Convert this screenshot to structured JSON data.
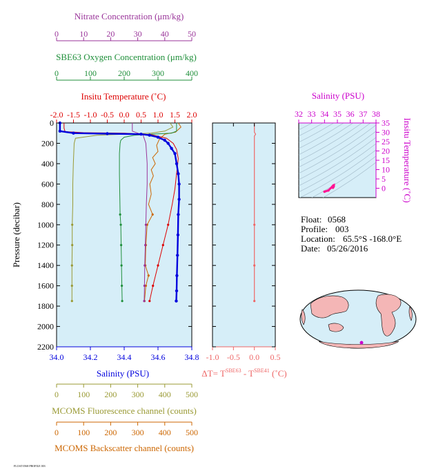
{
  "colors": {
    "nitrate": "#993399",
    "oxygen": "#1f8f3a",
    "temperature": "#dd0000",
    "salinity": "#0000dd",
    "fluorescence": "#999933",
    "backscatter": "#cc6600",
    "delta_t": "#ee6666",
    "ts_axis": "#cc00cc",
    "plot_bg": "#d6eef8",
    "map_land": "#f4b6b6",
    "map_ocean": "#d6eef8"
  },
  "info": {
    "float_label": "Float:",
    "float_value": "0568",
    "profile_label": "Profile:",
    "profile_value": "003",
    "location_label": "Location:",
    "location_value": "65.5°S  -168.0°E",
    "date_label": "Date:",
    "date_value": "05/26/2016"
  },
  "footer_note": "FLOAT 0568 PROFILE 003",
  "chart_data": [
    {
      "type": "line",
      "name": "main-profile",
      "ylabel": "Pressure (decibar)",
      "ylim": [
        2200,
        0
      ],
      "yticks": [
        0,
        200,
        400,
        600,
        800,
        1000,
        1200,
        1400,
        1600,
        1800,
        2000,
        2200
      ],
      "axes": {
        "nitrate": {
          "label": "Nitrate Concentration (μm/kg)",
          "lim": [
            0,
            50
          ],
          "ticks": [
            0,
            10,
            20,
            30,
            40,
            50
          ]
        },
        "oxygen": {
          "label": "SBE63 Oxygen Concentration (μm/kg)",
          "lim": [
            0,
            400
          ],
          "ticks": [
            0,
            100,
            200,
            300,
            400
          ]
        },
        "temperature": {
          "label": "Insitu Temperature (˚C)",
          "lim": [
            -2.0,
            2.0
          ],
          "ticks": [
            "-2.0",
            "-1.5",
            "-1.0",
            "-0.5",
            "0.0",
            "0.5",
            "1.0",
            "1.5",
            "2.0"
          ]
        },
        "salinity": {
          "label": "Salinity (PSU)",
          "lim": [
            34.0,
            34.8
          ],
          "ticks": [
            "34.0",
            "34.2",
            "34.4",
            "34.6",
            "34.8"
          ]
        },
        "fluorescence": {
          "label": "MCOMS Fluorescence channel (counts)",
          "lim": [
            0,
            500
          ],
          "ticks": [
            0,
            100,
            200,
            300,
            400,
            500
          ]
        },
        "backscatter": {
          "label": "MCOMS Backscatter channel (counts)",
          "lim": [
            0,
            500
          ],
          "ticks": [
            0,
            100,
            200,
            300,
            400,
            500
          ]
        }
      },
      "series": [
        {
          "key": "temperature",
          "axis": "temperature",
          "points": [
            [
              -1.78,
              0
            ],
            [
              -1.78,
              50
            ],
            [
              -1.75,
              85
            ],
            [
              -1.2,
              95
            ],
            [
              0.0,
              100
            ],
            [
              0.8,
              115
            ],
            [
              1.25,
              150
            ],
            [
              1.45,
              200
            ],
            [
              1.55,
              260
            ],
            [
              1.6,
              350
            ],
            [
              1.55,
              500
            ],
            [
              1.5,
              650
            ],
            [
              1.42,
              800
            ],
            [
              1.3,
              1000
            ],
            [
              1.15,
              1200
            ],
            [
              1.0,
              1400
            ],
            [
              0.85,
              1600
            ],
            [
              0.75,
              1750
            ]
          ]
        },
        {
          "key": "salinity",
          "axis": "salinity",
          "points": [
            [
              34.02,
              0
            ],
            [
              34.02,
              80
            ],
            [
              34.1,
              100
            ],
            [
              34.3,
              105
            ],
            [
              34.5,
              110
            ],
            [
              34.55,
              120
            ],
            [
              34.6,
              140
            ],
            [
              34.64,
              170
            ],
            [
              34.66,
              200
            ],
            [
              34.68,
              250
            ],
            [
              34.7,
              300
            ],
            [
              34.71,
              400
            ],
            [
              34.72,
              500
            ],
            [
              34.725,
              600
            ],
            [
              34.725,
              750
            ],
            [
              34.72,
              900
            ],
            [
              34.718,
              1100
            ],
            [
              34.715,
              1300
            ],
            [
              34.712,
              1500
            ],
            [
              34.71,
              1650
            ],
            [
              34.708,
              1750
            ]
          ]
        },
        {
          "key": "oxygen",
          "axis": "oxygen",
          "points": [
            [
              355,
              0
            ],
            [
              355,
              80
            ],
            [
              340,
              100
            ],
            [
              280,
              110
            ],
            [
              230,
              120
            ],
            [
              200,
              140
            ],
            [
              190,
              170
            ],
            [
              188,
              200
            ],
            [
              186,
              300
            ],
            [
              186,
              500
            ],
            [
              187,
              700
            ],
            [
              188,
              900
            ],
            [
              190,
              1000
            ],
            [
              191,
              1200
            ],
            [
              192,
              1400
            ],
            [
              193,
              1600
            ],
            [
              194,
              1750
            ]
          ]
        },
        {
          "key": "nitrate",
          "axis": "nitrate",
          "points": [
            [
              28,
              0
            ],
            [
              28,
              80
            ],
            [
              30,
              100
            ],
            [
              32,
              120
            ],
            [
              33,
              200
            ],
            [
              33.5,
              400
            ],
            [
              33.5,
              600
            ],
            [
              33.2,
              800
            ],
            [
              33.0,
              1000
            ],
            [
              32.8,
              1200
            ],
            [
              32.6,
              1400
            ],
            [
              32.5,
              1600
            ],
            [
              32.4,
              1750
            ]
          ]
        },
        {
          "key": "fluorescence",
          "axis": "fluorescence",
          "points": [
            [
              420,
              0
            ],
            [
              430,
              40
            ],
            [
              400,
              80
            ],
            [
              350,
              100
            ],
            [
              150,
              120
            ],
            [
              70,
              150
            ],
            [
              65,
              200
            ],
            [
              62,
              400
            ],
            [
              60,
              600
            ],
            [
              60,
              800
            ],
            [
              58,
              1000
            ],
            [
              58,
              1200
            ],
            [
              57,
              1400
            ],
            [
              57,
              1600
            ],
            [
              57,
              1750
            ]
          ]
        },
        {
          "key": "backscatter",
          "axis": "backscatter",
          "points": [
            [
              450,
              0
            ],
            [
              460,
              40
            ],
            [
              440,
              90
            ],
            [
              400,
              110
            ],
            [
              380,
              160
            ],
            [
              370,
              220
            ],
            [
              375,
              280
            ],
            [
              355,
              340
            ],
            [
              365,
              400
            ],
            [
              350,
              460
            ],
            [
              358,
              520
            ],
            [
              345,
              600
            ],
            [
              350,
              700
            ],
            [
              340,
              800
            ],
            [
              355,
              900
            ],
            [
              335,
              1000
            ],
            [
              330,
              1200
            ],
            [
              328,
              1400
            ],
            [
              340,
              1500
            ],
            [
              330,
              1600
            ],
            [
              325,
              1750
            ]
          ]
        }
      ]
    },
    {
      "type": "line",
      "name": "delta-t",
      "xlabel": "ΔT= T",
      "xlabel_sup1": "SBE63",
      "xlabel_mid": " - T",
      "xlabel_sup2": "SBE41",
      "xlabel_end": " (˚C)",
      "xlim": [
        -1.0,
        0.5
      ],
      "xticks": [
        "-1.0",
        "-0.5",
        "0.0",
        "0.5"
      ],
      "ylim": [
        2200,
        0
      ],
      "points": [
        [
          0.0,
          0
        ],
        [
          0.0,
          90
        ],
        [
          0.03,
          110
        ],
        [
          0.0,
          130
        ],
        [
          0.0,
          300
        ],
        [
          0.0,
          600
        ],
        [
          0.0,
          1000
        ],
        [
          0.0,
          1400
        ],
        [
          0.0,
          1750
        ]
      ]
    },
    {
      "type": "scatter",
      "name": "ts-diagram",
      "xlabel": "Salinity (PSU)",
      "ylabel": "Insitu Temperature (˚C)",
      "xlim": [
        32,
        38
      ],
      "ylim": [
        -5,
        35
      ],
      "xticks": [
        "32",
        "33",
        "34",
        "35",
        "36",
        "37",
        "38"
      ],
      "yticks": [
        "0",
        "5",
        "10",
        "15",
        "20",
        "25",
        "30",
        "35"
      ],
      "points": [
        [
          34.0,
          -1.8
        ],
        [
          34.3,
          -1.2
        ],
        [
          34.6,
          0.8
        ],
        [
          34.68,
          1.4
        ],
        [
          34.72,
          1.6
        ],
        [
          34.71,
          1.0
        ],
        [
          34.7,
          0.8
        ],
        [
          34.65,
          0.3
        ]
      ]
    }
  ]
}
